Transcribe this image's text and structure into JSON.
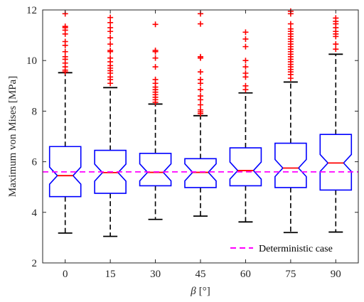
{
  "chart_data": {
    "type": "boxplot",
    "notched": true,
    "categories": [
      "0",
      "15",
      "30",
      "45",
      "60",
      "75",
      "90"
    ],
    "xlabel_symbol": "β",
    "xlabel_unit": "[°]",
    "ylabel": "Maximum von Mises [MPa]",
    "ylim": [
      2,
      12
    ],
    "yticks": [
      "2",
      "4",
      "6",
      "8",
      "10",
      "12"
    ],
    "grid": false,
    "legend": {
      "position": "bottom-right",
      "entries": [
        "Deterministic case"
      ]
    },
    "deterministic_value": 5.6,
    "colors": {
      "box": "#0000ff",
      "median": "#ff0000",
      "whisker": "#000000",
      "outlier": "#ff0000",
      "reference": "#ff00ff"
    },
    "boxes": [
      {
        "category": "0",
        "whisker_low": 3.18,
        "q1": 4.62,
        "median": 5.45,
        "q3": 6.6,
        "whisker_high": 9.52,
        "outliers": [
          9.55,
          9.62,
          9.75,
          9.9,
          10.05,
          10.15,
          10.35,
          10.6,
          10.75,
          11.05,
          11.2,
          11.3,
          11.35,
          11.85
        ]
      },
      {
        "category": "15",
        "whisker_low": 3.05,
        "q1": 4.75,
        "median": 5.57,
        "q3": 6.45,
        "whisker_high": 8.93,
        "outliers": [
          9.1,
          9.25,
          9.35,
          9.5,
          9.6,
          9.7,
          9.8,
          9.95,
          10.1,
          10.35,
          10.4,
          10.65,
          10.9,
          11.15,
          11.3,
          11.5,
          11.7
        ]
      },
      {
        "category": "30",
        "whisker_low": 3.72,
        "q1": 5.05,
        "median": 5.58,
        "q3": 6.33,
        "whisker_high": 8.28,
        "outliers": [
          8.35,
          8.45,
          8.55,
          8.65,
          8.75,
          8.85,
          8.95,
          9.1,
          9.25,
          9.75,
          10.1,
          10.35,
          10.4,
          11.43
        ]
      },
      {
        "category": "45",
        "whisker_low": 3.85,
        "q1": 4.98,
        "median": 5.58,
        "q3": 6.12,
        "whisker_high": 7.82,
        "outliers": [
          7.9,
          7.97,
          8.05,
          8.25,
          8.45,
          8.6,
          8.85,
          9.1,
          9.25,
          9.55,
          10.1,
          10.15,
          11.45,
          11.85
        ]
      },
      {
        "category": "60",
        "whisker_low": 3.62,
        "q1": 5.05,
        "median": 5.65,
        "q3": 6.55,
        "whisker_high": 8.72,
        "outliers": [
          8.85,
          9.0,
          9.35,
          9.5,
          9.75,
          10.0,
          10.55,
          10.85,
          11.12
        ]
      },
      {
        "category": "75",
        "whisker_low": 3.2,
        "q1": 4.98,
        "median": 5.75,
        "q3": 6.73,
        "whisker_high": 9.15,
        "outliers": [
          9.3,
          9.45,
          9.55,
          9.65,
          9.75,
          9.85,
          9.95,
          10.05,
          10.15,
          10.25,
          10.35,
          10.45,
          10.55,
          10.65,
          10.75,
          10.85,
          10.95,
          11.05,
          11.15,
          11.25,
          11.45,
          11.85,
          11.95
        ]
      },
      {
        "category": "90",
        "whisker_low": 3.22,
        "q1": 4.88,
        "median": 5.95,
        "q3": 7.08,
        "whisker_high": 10.25,
        "outliers": [
          10.45,
          10.65,
          10.95,
          11.05,
          11.15,
          11.3,
          11.45,
          11.55,
          11.68
        ]
      }
    ]
  }
}
